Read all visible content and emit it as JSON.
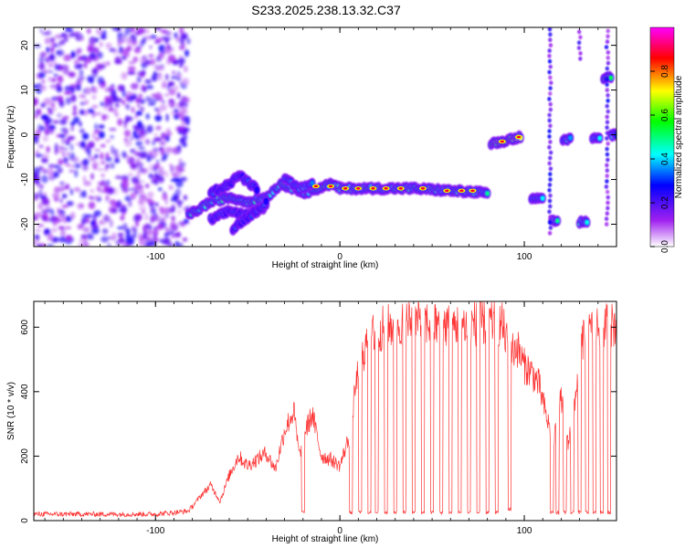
{
  "figure": {
    "title": "S233.2025.238.13.32.C37"
  },
  "chart_data": [
    {
      "type": "heatmap",
      "xlabel": "Height of straight line (km)",
      "ylabel": "Frequency (Hz)",
      "xlim": [
        -166,
        150
      ],
      "ylim": [
        -25,
        24
      ],
      "x_ticks": [
        -100,
        0,
        100
      ],
      "y_ticks": [
        -20,
        -10,
        0,
        10,
        20
      ],
      "colorbar": {
        "label": "Normalized spectral amplitude",
        "range": [
          0,
          1
        ],
        "ticks": [
          "0.0",
          "0.2",
          "0.4",
          "0.6",
          "0.8"
        ],
        "colors": [
          "#ffffff",
          "#a020f0",
          "#0000ff",
          "#00ffff",
          "#00ff00",
          "#ffff00",
          "#ff0000",
          "#ff00ff"
        ]
      },
      "noise_region_x": [
        -166,
        -82
      ],
      "tracks": [
        {
          "x": [
            -82,
            -70,
            -60,
            -50,
            -40,
            -32,
            -25,
            -18,
            -12,
            -5,
            0,
            20,
            40,
            60,
            80
          ],
          "y": [
            -18,
            -15,
            -14,
            -15,
            -14,
            -11,
            -12,
            -13,
            -12,
            -11,
            -12,
            -12,
            -12,
            -12.5,
            -13
          ],
          "peak": 0.55
        },
        {
          "x": [
            -70,
            -60,
            -50,
            -40
          ],
          "y": [
            -19,
            -17,
            -18,
            -16
          ],
          "peak": 0.35
        },
        {
          "x": [
            -70,
            -60,
            -55,
            -45
          ],
          "y": [
            -13,
            -11,
            -9,
            -12
          ],
          "peak": 0.3
        },
        {
          "x": [
            -58,
            -52,
            -45,
            -40
          ],
          "y": [
            -21,
            -19,
            -17,
            -15
          ],
          "peak": 0.3
        },
        {
          "x": [
            -30,
            -22,
            -15
          ],
          "y": [
            -10,
            -12,
            -11
          ],
          "peak": 0.45
        },
        {
          "x": [
            82,
            88,
            93,
            98
          ],
          "y": [
            -2,
            -1.5,
            -1,
            -0.5
          ],
          "peak": 0.8
        },
        {
          "x": [
            104,
            110
          ],
          "y": [
            -14,
            -14
          ],
          "peak": 0.45
        },
        {
          "x": [
            115,
            118
          ],
          "y": [
            -19,
            -19.5
          ],
          "peak": 0.5
        },
        {
          "x": [
            121,
            125
          ],
          "y": [
            -1,
            -1
          ],
          "peak": 0.45
        },
        {
          "x": [
            130,
            134
          ],
          "y": [
            -19.5,
            -19.5
          ],
          "peak": 0.5
        },
        {
          "x": [
            137,
            141
          ],
          "y": [
            -1,
            -1
          ],
          "peak": 0.45
        },
        {
          "x": [
            143,
            147
          ],
          "y": [
            12.5,
            13
          ],
          "peak": 0.65
        },
        {
          "x": [
            147,
            150
          ],
          "y": [
            0,
            0
          ],
          "peak": 0.4
        }
      ],
      "peaks": [
        {
          "x": -13,
          "y": -11.5
        },
        {
          "x": -5,
          "y": -11.5
        },
        {
          "x": 3,
          "y": -12
        },
        {
          "x": 10,
          "y": -12
        },
        {
          "x": 18,
          "y": -12
        },
        {
          "x": 25,
          "y": -12
        },
        {
          "x": 33,
          "y": -12
        },
        {
          "x": 45,
          "y": -12
        },
        {
          "x": 58,
          "y": -12.5
        },
        {
          "x": 66,
          "y": -12.5
        },
        {
          "x": 72,
          "y": -12.5
        },
        {
          "x": 88,
          "y": -1.5
        },
        {
          "x": 97,
          "y": -0.5
        }
      ],
      "vertical_streaks": [
        {
          "x": 114,
          "y": [
            -22,
            24
          ]
        },
        {
          "x": 130,
          "y": [
            17,
            24
          ]
        },
        {
          "x": 145,
          "y": [
            -20,
            24
          ]
        }
      ]
    },
    {
      "type": "line",
      "xlabel": "Height of straight line (km)",
      "ylabel": "SNR (10 * v/v)",
      "xlim": [
        -166,
        150
      ],
      "ylim": [
        0,
        680
      ],
      "x_ticks": [
        -100,
        0,
        100
      ],
      "y_ticks": [
        0,
        200,
        400,
        600
      ],
      "color": "#ff3333",
      "envelope": {
        "x": [
          -166,
          -100,
          -90,
          -82,
          -75,
          -70,
          -65,
          -60,
          -55,
          -50,
          -45,
          -40,
          -35,
          -30,
          -25,
          -22,
          -20,
          -15,
          -10,
          -5,
          0,
          5,
          10,
          15,
          20,
          25,
          30,
          40,
          50,
          60,
          70,
          80,
          88,
          92,
          96,
          100,
          104,
          108,
          112,
          116,
          120,
          124,
          128,
          132,
          140,
          150
        ],
        "y": [
          20,
          20,
          25,
          30,
          80,
          110,
          60,
          140,
          200,
          170,
          190,
          210,
          160,
          280,
          340,
          200,
          260,
          330,
          200,
          190,
          170,
          260,
          470,
          560,
          590,
          600,
          610,
          620,
          610,
          605,
          610,
          615,
          610,
          520,
          540,
          480,
          460,
          420,
          320,
          250,
          380,
          240,
          400,
          570,
          600,
          610
        ]
      },
      "dips": [
        {
          "x": 6,
          "min": 20
        },
        {
          "x": 11,
          "min": 20
        },
        {
          "x": 16,
          "min": 20
        },
        {
          "x": 20,
          "min": 20
        },
        {
          "x": 25,
          "min": 20
        },
        {
          "x": 30,
          "min": 20
        },
        {
          "x": 35,
          "min": 20
        },
        {
          "x": 40,
          "min": 20
        },
        {
          "x": 45,
          "min": 20
        },
        {
          "x": 50,
          "min": 20
        },
        {
          "x": 55,
          "min": 20
        },
        {
          "x": 60,
          "min": 20
        },
        {
          "x": 65,
          "min": 20
        },
        {
          "x": 70,
          "min": 20
        },
        {
          "x": 75,
          "min": 20
        },
        {
          "x": 80,
          "min": 20
        },
        {
          "x": 85,
          "min": 20
        },
        {
          "x": 92,
          "min": 30
        },
        {
          "x": 115,
          "min": 20
        },
        {
          "x": 118,
          "min": 20
        },
        {
          "x": 122,
          "min": 20
        },
        {
          "x": 126,
          "min": 20
        },
        {
          "x": 130,
          "min": 20
        },
        {
          "x": 134,
          "min": 20
        },
        {
          "x": 138,
          "min": 20
        },
        {
          "x": 142,
          "min": 20
        },
        {
          "x": 146,
          "min": 20
        },
        {
          "x": -20,
          "min": 20
        }
      ]
    }
  ]
}
